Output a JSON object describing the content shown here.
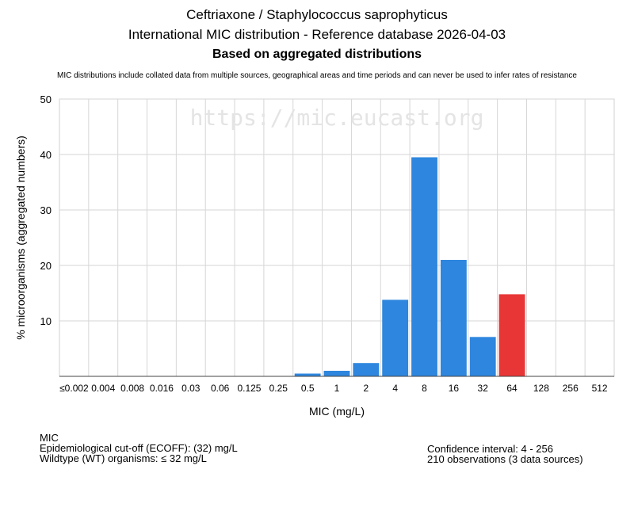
{
  "header": {
    "title": "Ceftriaxone / Staphylococcus saprophyticus",
    "subtitle": "International MIC distribution - Reference database 2026-04-03",
    "basis": "Based on aggregated distributions",
    "disclaimer": "MIC distributions include collated data from multiple sources, geographical areas and time periods and can never be used to infer rates of resistance"
  },
  "watermark": "https://mic.eucast.org",
  "chart_data": {
    "type": "bar",
    "xlabel": "MIC (mg/L)",
    "ylabel": "% microorganisms (aggregated numbers)",
    "ylim": [
      0,
      50
    ],
    "yticks": [
      10,
      20,
      30,
      40,
      50
    ],
    "grid": true,
    "categories": [
      "≤0.002",
      "0.004",
      "0.008",
      "0.016",
      "0.03",
      "0.06",
      "0.125",
      "0.25",
      "0.5",
      "1",
      "2",
      "4",
      "8",
      "16",
      "32",
      "64",
      "128",
      "256",
      "512"
    ],
    "values": [
      0,
      0,
      0,
      0,
      0,
      0,
      0,
      0,
      0.5,
      1.0,
      2.4,
      13.8,
      39.5,
      21.0,
      7.1,
      14.8,
      0,
      0,
      0
    ],
    "colors": {
      "wildtype": "#2e86de",
      "non_wildtype": "#e83535"
    },
    "ecoff_category": "32"
  },
  "footer": {
    "left": [
      "MIC",
      "Epidemiological cut-off (ECOFF): (32) mg/L",
      "Wildtype (WT) organisms: ≤ 32 mg/L"
    ],
    "right": [
      "Confidence interval: 4 - 256",
      "210 observations (3 data sources)"
    ]
  }
}
